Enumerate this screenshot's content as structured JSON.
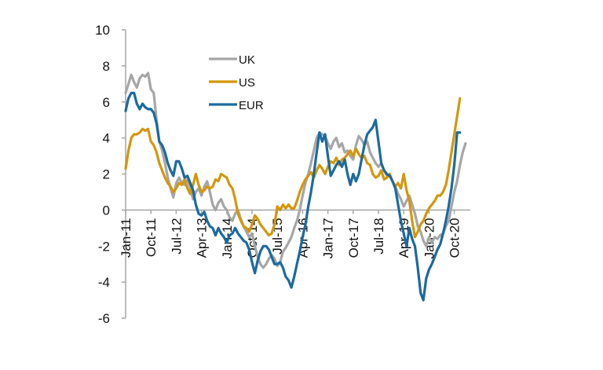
{
  "chart_data": {
    "type": "line",
    "title": "",
    "xlabel": "",
    "ylabel": "",
    "ylim": [
      -6,
      10
    ],
    "yticks": [
      10,
      8,
      6,
      4,
      2,
      0,
      -2,
      -4,
      -6
    ],
    "xtick_labels": [
      "Jan-11",
      "Oct-11",
      "Jul-12",
      "Apr-13",
      "Jan-14",
      "Oct-14",
      "Jul-15",
      "Apr-16",
      "Jan-17",
      "Oct-17",
      "Jul-18",
      "Apr-19",
      "Jan-20",
      "Oct-20"
    ],
    "x_start": "Jan-11",
    "x_frequency": "monthly",
    "grid": false,
    "legend_position": "top-center",
    "series": [
      {
        "name": "UK",
        "color": "#a6a6a6",
        "values": [
          6.5,
          7.0,
          7.5,
          7.1,
          6.8,
          7.3,
          7.5,
          7.4,
          7.6,
          6.7,
          6.5,
          5.0,
          3.8,
          3.3,
          2.6,
          1.8,
          1.2,
          0.7,
          1.5,
          1.8,
          1.5,
          1.4,
          1.7,
          1.2,
          0.6,
          1.0,
          1.2,
          0.8,
          1.3,
          1.6,
          1.0,
          0.3,
          0.0,
          0.4,
          0.6,
          0.2,
          0.0,
          -0.4,
          -0.6,
          -0.2,
          0.0,
          -0.5,
          -0.9,
          -1.2,
          -1.5,
          -1.3,
          -2.0,
          -2.6,
          -3.0,
          -3.2,
          -3.0,
          -2.7,
          -2.5,
          -2.7,
          -3.1,
          -2.9,
          -2.3,
          -2.1,
          -1.8,
          -1.5,
          -1.0,
          -0.6,
          0.0,
          0.8,
          1.5,
          2.0,
          2.6,
          3.3,
          4.0,
          4.3,
          4.2,
          4.1,
          3.7,
          3.4,
          3.8,
          4.0,
          3.5,
          3.7,
          3.2,
          3.3,
          3.0,
          2.8,
          3.6,
          4.1,
          3.9,
          3.6,
          3.8,
          3.2,
          2.9,
          2.6,
          2.4,
          2.6,
          2.2,
          1.9,
          2.0,
          1.6,
          1.3,
          0.9,
          0.6,
          0.2,
          0.5,
          0.8,
          0.3,
          -0.2,
          -0.9,
          -1.2,
          -1.7,
          -2.0,
          -1.5,
          -1.8,
          -1.5,
          -1.6,
          -1.4,
          -1.3,
          -0.9,
          -0.6,
          0.2,
          1.0,
          1.6,
          2.5,
          3.2,
          3.7
        ]
      },
      {
        "name": "US",
        "color": "#d4970b",
        "values": [
          2.3,
          3.3,
          4.0,
          4.2,
          4.2,
          4.3,
          4.5,
          4.4,
          4.5,
          3.8,
          3.6,
          3.2,
          2.6,
          2.2,
          1.8,
          1.5,
          1.3,
          1.0,
          1.2,
          1.5,
          1.4,
          1.7,
          1.2,
          0.9,
          1.4,
          2.0,
          1.4,
          1.0,
          1.1,
          1.3,
          1.2,
          1.3,
          1.7,
          1.6,
          2.0,
          1.9,
          1.8,
          1.4,
          1.2,
          0.6,
          -0.2,
          -0.6,
          -0.9,
          -1.0,
          -1.2,
          -0.8,
          -0.3,
          -0.5,
          -0.8,
          -1.0,
          -1.2,
          -1.4,
          -1.3,
          -0.8,
          0.2,
          0.0,
          0.3,
          0.1,
          0.3,
          0.1,
          0.1,
          0.5,
          1.0,
          1.4,
          1.7,
          1.9,
          2.1,
          1.8,
          2.2,
          2.5,
          2.3,
          2.0,
          2.4,
          2.7,
          2.6,
          2.9,
          2.5,
          2.8,
          2.9,
          3.1,
          3.3,
          3.0,
          3.4,
          3.1,
          2.9,
          3.0,
          2.6,
          2.5,
          2.0,
          1.8,
          1.9,
          2.2,
          1.7,
          1.8,
          2.0,
          1.6,
          1.3,
          1.5,
          1.2,
          2.0,
          1.1,
          0.5,
          -0.6,
          -1.5,
          -1.2,
          -0.8,
          -0.6,
          -0.2,
          0.1,
          0.3,
          0.5,
          0.8,
          0.8,
          1.0,
          1.4,
          2.2,
          3.2,
          4.2,
          5.2,
          6.2
        ]
      },
      {
        "name": "EUR",
        "color": "#1b6aa0",
        "values": [
          5.5,
          6.2,
          6.5,
          6.5,
          5.9,
          5.6,
          5.9,
          5.7,
          5.6,
          5.6,
          5.4,
          4.8,
          3.8,
          3.6,
          3.2,
          2.6,
          2.2,
          1.9,
          2.7,
          2.7,
          2.3,
          1.8,
          1.9,
          1.5,
          1.1,
          0.3,
          -0.2,
          -0.3,
          -0.1,
          -0.6,
          -0.9,
          -1.0,
          -1.4,
          -1.0,
          -1.3,
          -1.5,
          -1.8,
          -1.4,
          -1.3,
          -1.0,
          -1.3,
          -1.5,
          -1.7,
          -1.8,
          -2.2,
          -2.9,
          -3.5,
          -2.8,
          -2.3,
          -2.0,
          -2.0,
          -2.2,
          -2.6,
          -3.0,
          -3.0,
          -2.9,
          -3.2,
          -3.7,
          -3.9,
          -4.3,
          -3.7,
          -3.0,
          -2.3,
          -1.5,
          -0.8,
          0.2,
          1.0,
          2.0,
          3.2,
          4.3,
          3.8,
          4.2,
          3.0,
          1.9,
          2.2,
          2.5,
          2.7,
          2.4,
          2.8,
          2.0,
          1.4,
          2.0,
          1.6,
          2.0,
          2.8,
          3.6,
          4.2,
          4.4,
          4.6,
          5.0,
          3.8,
          2.6,
          2.2,
          2.0,
          1.9,
          1.6,
          1.2,
          0.3,
          -0.6,
          -1.3,
          -2.0,
          -1.0,
          -1.6,
          -2.0,
          -3.2,
          -4.6,
          -5.0,
          -3.8,
          -3.3,
          -3.0,
          -2.6,
          -2.2,
          -1.9,
          -1.3,
          -0.6,
          0.2,
          1.2,
          2.5,
          4.3,
          4.3
        ]
      }
    ]
  }
}
